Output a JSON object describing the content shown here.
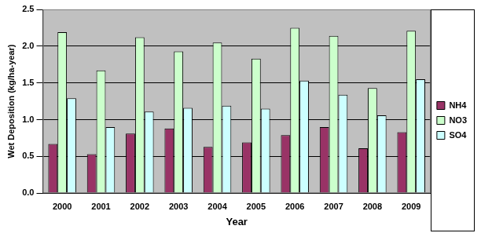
{
  "chart_data": {
    "type": "bar",
    "x_label": "Year",
    "y_label": "Wet Deposition (kg/ha-year)",
    "categories": [
      "2000",
      "2001",
      "2002",
      "2003",
      "2004",
      "2005",
      "2006",
      "2007",
      "2008",
      "2009"
    ],
    "series": [
      {
        "name": "NH4",
        "color": "#993366",
        "values": [
          0.67,
          0.53,
          0.81,
          0.88,
          0.63,
          0.69,
          0.79,
          0.9,
          0.61,
          0.83
        ]
      },
      {
        "name": "NO3",
        "color": "#ccffcc",
        "values": [
          2.19,
          1.67,
          2.12,
          1.93,
          2.05,
          1.83,
          2.25,
          2.14,
          1.43,
          2.21
        ]
      },
      {
        "name": "SO4",
        "color": "#ccffff",
        "values": [
          1.29,
          0.9,
          1.11,
          1.16,
          1.19,
          1.15,
          1.53,
          1.34,
          1.06,
          1.55
        ]
      }
    ],
    "ylim": [
      0,
      2.5
    ],
    "yticks": [
      {
        "value": 0,
        "label": "0.0"
      },
      0.5,
      {
        "value": 1,
        "label": "1.0"
      },
      1.5,
      {
        "value": 2,
        "label": "2.0"
      },
      2.5
    ],
    "grid": true,
    "legend": "right"
  }
}
